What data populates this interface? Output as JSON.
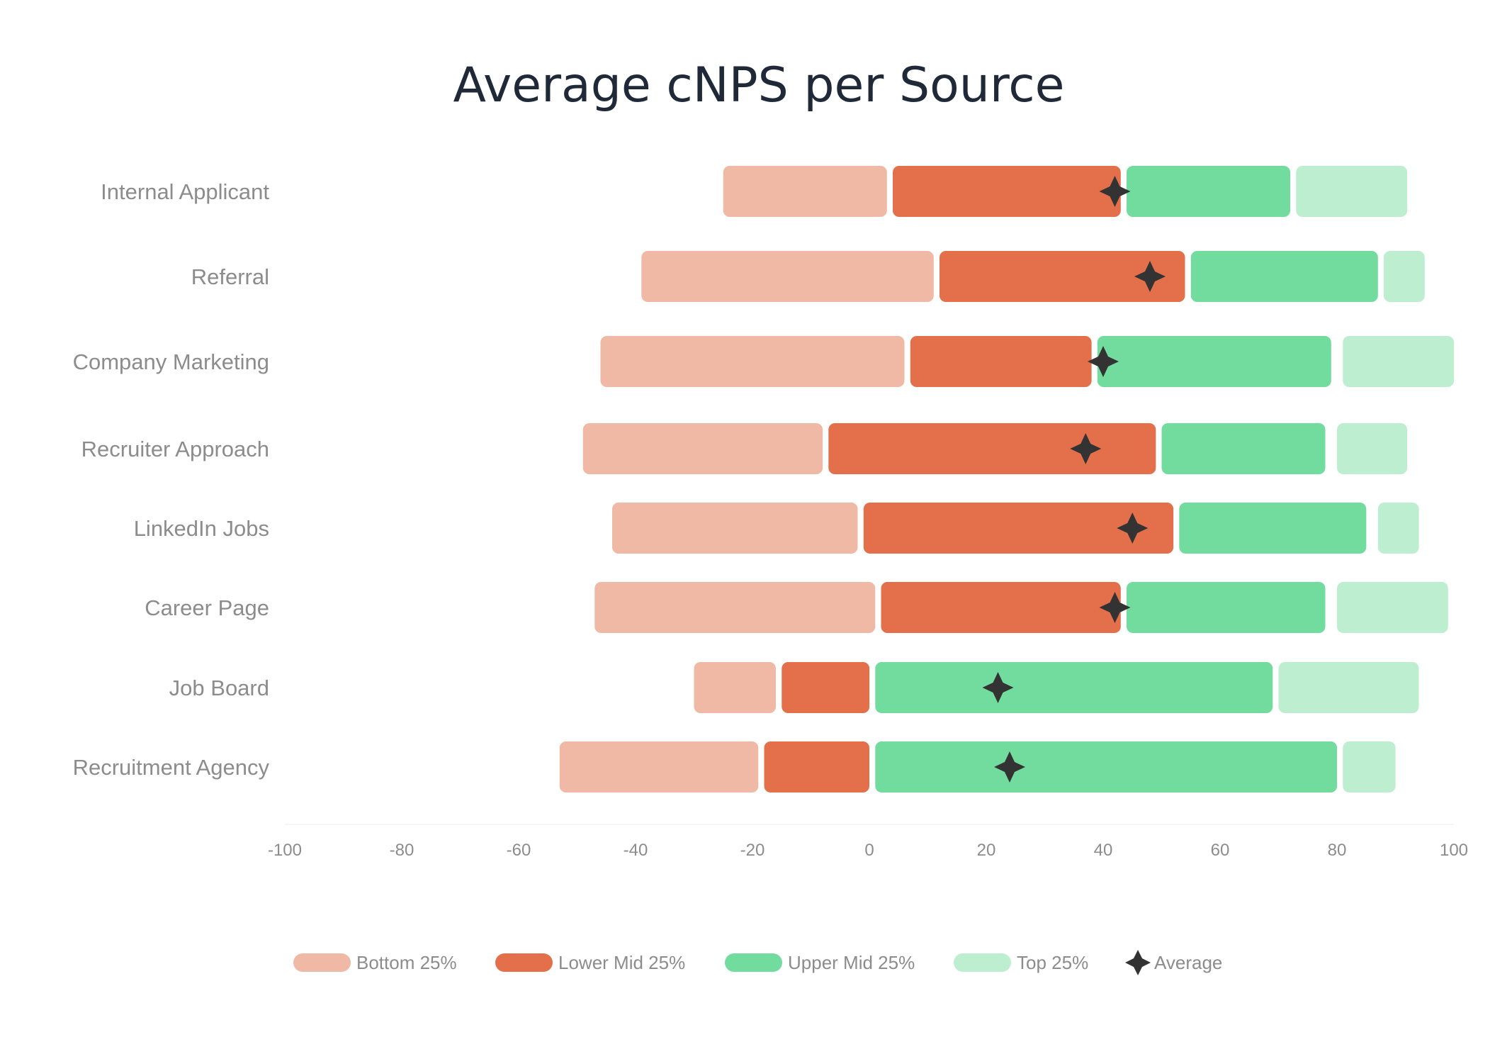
{
  "chart_data": {
    "type": "bar",
    "subtype": "stacked-horizontal-range",
    "title": "Average cNPS per Source",
    "xlabel": "",
    "ylabel": "",
    "xlim": [
      -100,
      100
    ],
    "xticks": [
      -100,
      -80,
      -60,
      -40,
      -20,
      0,
      20,
      40,
      60,
      80,
      100
    ],
    "xtick_labels": [
      "-100",
      "-80",
      "-60",
      "-40",
      "-20",
      "0",
      "20",
      "40",
      "60",
      "80",
      "100"
    ],
    "grid": false,
    "legend_position": "bottom-center",
    "categories": [
      "Internal Applicant",
      "Referral",
      "Company Marketing",
      "Recruiter Approach",
      "LinkedIn Jobs",
      "Career Page",
      "Job Board",
      "Recruitment Agency"
    ],
    "series": [
      {
        "name": "Bottom 25%",
        "color": "#f0b9a6",
        "start": [
          -25,
          -39,
          -46,
          -49,
          -44,
          -47,
          -30,
          -53
        ],
        "end": [
          3,
          11,
          6,
          -8,
          -2,
          1,
          -16,
          -19
        ]
      },
      {
        "name": "Lower Mid 25%",
        "color": "#e3704b",
        "start": [
          4,
          12,
          7,
          -7,
          -1,
          2,
          -15,
          -18
        ],
        "end": [
          43,
          54,
          38,
          49,
          52,
          43,
          0,
          0
        ]
      },
      {
        "name": "Upper Mid 25%",
        "color": "#72dc9e",
        "start": [
          44,
          55,
          39,
          50,
          53,
          44,
          1,
          1
        ],
        "end": [
          72,
          87,
          79,
          78,
          85,
          78,
          69,
          80
        ]
      },
      {
        "name": "Top 25%",
        "color": "#bdeecf",
        "start": [
          73,
          88,
          81,
          80,
          87,
          80,
          70,
          81
        ],
        "end": [
          92,
          95,
          100,
          92,
          94,
          99,
          94,
          90
        ]
      }
    ],
    "average": {
      "name": "Average",
      "color": "#333333",
      "values": [
        42,
        48,
        40,
        37,
        45,
        42,
        22,
        24
      ]
    }
  }
}
